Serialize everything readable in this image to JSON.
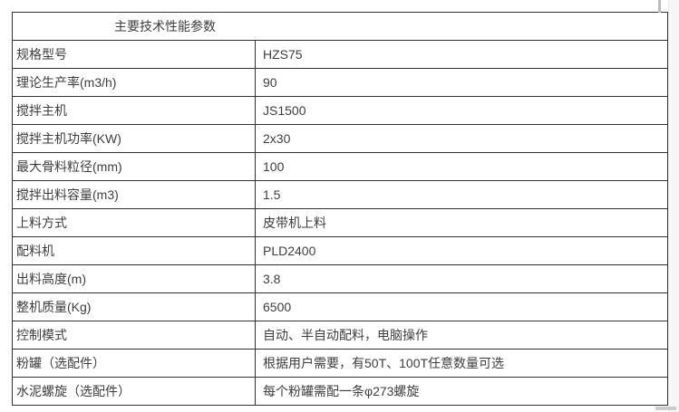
{
  "page": {
    "background": "#ffffff",
    "border_color": "#333333",
    "text_color": "#3d3d3d"
  },
  "table": {
    "title": "主要技术性能参数",
    "rows": [
      {
        "label": "规格型号",
        "value": "HZS75"
      },
      {
        "label": "理论生产率(m3/h)",
        "value": "90"
      },
      {
        "label": "搅拌主机",
        "value": "JS1500"
      },
      {
        "label": "搅拌主机功率(KW)",
        "value": "2x30"
      },
      {
        "label": "最大骨料粒径(mm)",
        "value": "100"
      },
      {
        "label": "搅拌出料容量(m3)",
        "value": "1.5"
      },
      {
        "label": "上料方式",
        "value": "皮带机上料"
      },
      {
        "label": "配料机",
        "value": "PLD2400"
      },
      {
        "label": "出料高度(m)",
        "value": "3.8"
      },
      {
        "label": "整机质量(Kg)",
        "value": "6500"
      },
      {
        "label": "控制模式",
        "value": "自动、半自动配料，电脑操作"
      },
      {
        "label": "粉罐（选配件）",
        "value": "根据用户需要，有50T、100T任意数量可选"
      },
      {
        "label": "水泥螺旋（选配件）",
        "value": "每个粉罐需配一条φ273螺旋"
      }
    ]
  }
}
